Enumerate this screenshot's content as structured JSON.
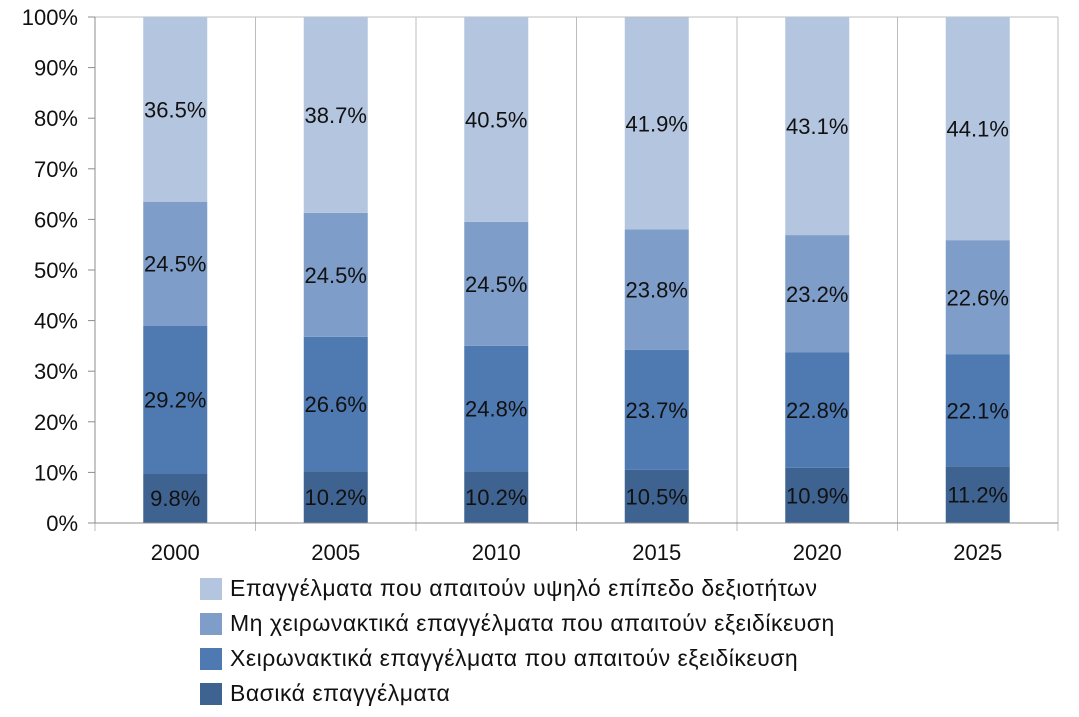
{
  "chart_data": {
    "type": "bar",
    "stacked": true,
    "percent_stacked": true,
    "categories": [
      "2000",
      "2005",
      "2010",
      "2015",
      "2020",
      "2025"
    ],
    "series": [
      {
        "name": "Βασικά επαγγέλματα",
        "color": "#3f6391",
        "values": [
          9.8,
          10.2,
          10.2,
          10.5,
          10.9,
          11.2
        ],
        "labels": [
          "9.8%",
          "10.2%",
          "10.2%",
          "10.5%",
          "10.9%",
          "11.2%"
        ]
      },
      {
        "name": "Χειρωνακτικά επαγγέλματα που απαιτούν εξειδίκευση",
        "color": "#4f79b1",
        "values": [
          29.2,
          26.6,
          24.8,
          23.7,
          22.8,
          22.1
        ],
        "labels": [
          "29.2%",
          "26.6%",
          "24.8%",
          "23.7%",
          "22.8%",
          "22.1%"
        ]
      },
      {
        "name": "Μη χειρωνακτικά επαγγέλματα που απαιτούν εξειδίκευση",
        "color": "#7f9dc9",
        "values": [
          24.5,
          24.5,
          24.5,
          23.8,
          23.2,
          22.6
        ],
        "labels": [
          "24.5%",
          "24.5%",
          "24.5%",
          "23.8%",
          "23.2%",
          "22.6%"
        ]
      },
      {
        "name": "Επαγγέλματα που απαιτούν υψηλό  επίπεδο δεξιοτήτων",
        "color": "#b4c5df",
        "values": [
          36.5,
          38.7,
          40.5,
          41.9,
          43.1,
          44.1
        ],
        "labels": [
          "36.5%",
          "38.7%",
          "40.5%",
          "41.9%",
          "43.1%",
          "44.1%"
        ]
      }
    ],
    "ylim": [
      0,
      100
    ],
    "yticks": [
      "0%",
      "10%",
      "20%",
      "30%",
      "40%",
      "50%",
      "60%",
      "70%",
      "80%",
      "90%",
      "100%"
    ],
    "grid": "vertical-category-separators",
    "legend_position": "bottom",
    "legend_order": [
      3,
      2,
      1,
      0
    ],
    "title": "",
    "xlabel": "",
    "ylabel": ""
  }
}
